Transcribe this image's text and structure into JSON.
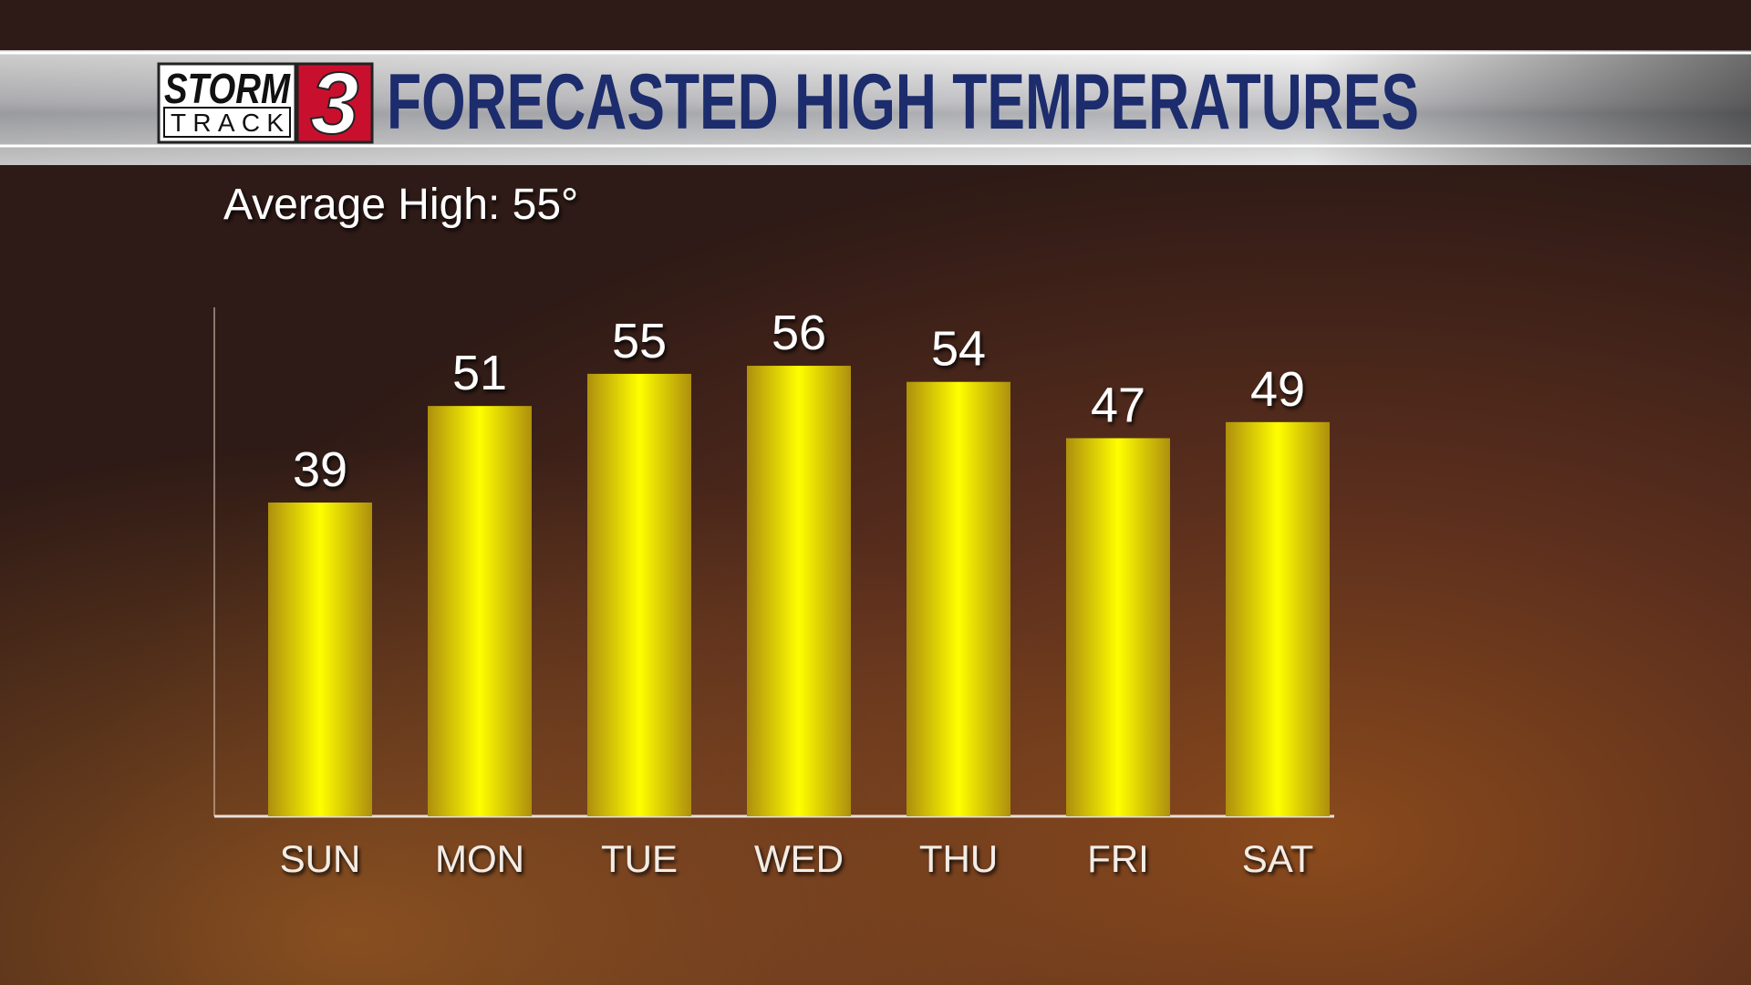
{
  "logo": {
    "top": "STORM",
    "bottom": "TRACK",
    "number": "3"
  },
  "chart_data": {
    "type": "bar",
    "title": "FORECASTED HIGH TEMPERATURES",
    "subtitle": "Average High: 55°",
    "categories": [
      "SUN",
      "MON",
      "TUE",
      "WED",
      "THU",
      "FRI",
      "SAT"
    ],
    "values": [
      39,
      51,
      55,
      56,
      54,
      47,
      49
    ],
    "color": "#ffff00"
  }
}
